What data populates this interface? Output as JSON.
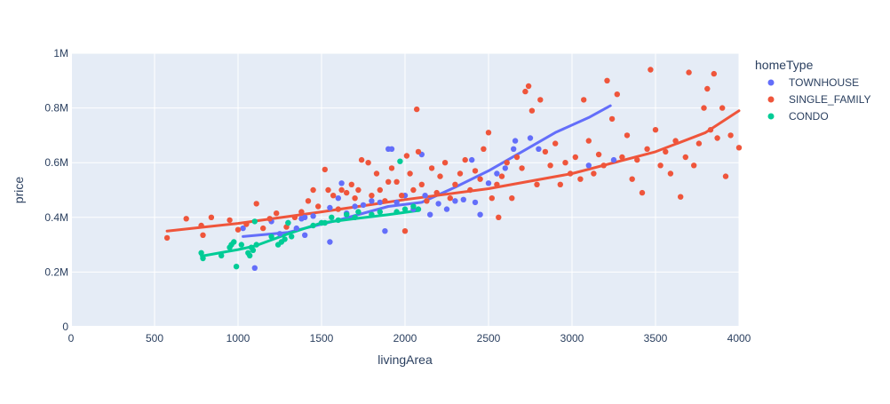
{
  "chart_data": {
    "type": "scatter",
    "title": "",
    "xlabel": "livingArea",
    "ylabel": "price",
    "xlim": [
      0,
      4000
    ],
    "ylim": [
      0,
      1000000
    ],
    "x_ticks": [
      0,
      500,
      1000,
      1500,
      2000,
      2500,
      3000,
      3500,
      4000
    ],
    "x_tick_labels": [
      "0",
      "500",
      "1000",
      "1500",
      "2000",
      "2500",
      "3000",
      "3500",
      "4000"
    ],
    "y_ticks": [
      0,
      200000,
      400000,
      600000,
      800000,
      1000000
    ],
    "y_tick_labels": [
      "0",
      "0.2M",
      "0.4M",
      "0.6M",
      "0.8M",
      "1M"
    ],
    "grid": true,
    "background": "#e5ecf6",
    "legend": {
      "title": "homeType",
      "position": "top-right"
    },
    "series": [
      {
        "name": "TOWNHOUSE",
        "color": "#636efa",
        "points": [
          [
            1030,
            360000
          ],
          [
            1100,
            215000
          ],
          [
            1200,
            385000
          ],
          [
            1250,
            340000
          ],
          [
            1300,
            380000
          ],
          [
            1350,
            360000
          ],
          [
            1380,
            395000
          ],
          [
            1400,
            335000
          ],
          [
            1400,
            400000
          ],
          [
            1450,
            405000
          ],
          [
            1500,
            380000
          ],
          [
            1550,
            310000
          ],
          [
            1550,
            435000
          ],
          [
            1600,
            470000
          ],
          [
            1620,
            525000
          ],
          [
            1650,
            415000
          ],
          [
            1700,
            440000
          ],
          [
            1750,
            445000
          ],
          [
            1800,
            460000
          ],
          [
            1850,
            455000
          ],
          [
            1880,
            350000
          ],
          [
            1900,
            650000
          ],
          [
            1920,
            650000
          ],
          [
            1950,
            455000
          ],
          [
            2000,
            480000
          ],
          [
            2050,
            430000
          ],
          [
            2100,
            630000
          ],
          [
            2120,
            480000
          ],
          [
            2150,
            410000
          ],
          [
            2200,
            450000
          ],
          [
            2250,
            430000
          ],
          [
            2300,
            460000
          ],
          [
            2350,
            465000
          ],
          [
            2400,
            610000
          ],
          [
            2420,
            455000
          ],
          [
            2450,
            410000
          ],
          [
            2500,
            525000
          ],
          [
            2550,
            560000
          ],
          [
            2600,
            580000
          ],
          [
            2650,
            650000
          ],
          [
            2660,
            680000
          ],
          [
            2750,
            690000
          ],
          [
            2800,
            650000
          ],
          [
            3100,
            590000
          ],
          [
            3250,
            610000
          ]
        ],
        "trend": [
          [
            1030,
            330000
          ],
          [
            1300,
            345000
          ],
          [
            1600,
            390000
          ],
          [
            1900,
            440000
          ],
          [
            2100,
            455000
          ],
          [
            2300,
            510000
          ],
          [
            2500,
            570000
          ],
          [
            2700,
            640000
          ],
          [
            2900,
            710000
          ],
          [
            3100,
            765000
          ],
          [
            3230,
            808000
          ]
        ]
      },
      {
        "name": "SINGLE_FAMILY",
        "color": "#ef553b",
        "points": [
          [
            575,
            325000
          ],
          [
            690,
            395000
          ],
          [
            780,
            370000
          ],
          [
            790,
            335000
          ],
          [
            840,
            400000
          ],
          [
            950,
            390000
          ],
          [
            1000,
            355000
          ],
          [
            1050,
            375000
          ],
          [
            1110,
            450000
          ],
          [
            1150,
            360000
          ],
          [
            1190,
            395000
          ],
          [
            1230,
            415000
          ],
          [
            1290,
            365000
          ],
          [
            1340,
            400000
          ],
          [
            1380,
            420000
          ],
          [
            1420,
            460000
          ],
          [
            1450,
            500000
          ],
          [
            1480,
            440000
          ],
          [
            1520,
            575000
          ],
          [
            1540,
            500000
          ],
          [
            1570,
            480000
          ],
          [
            1600,
            430000
          ],
          [
            1620,
            500000
          ],
          [
            1650,
            490000
          ],
          [
            1680,
            520000
          ],
          [
            1700,
            470000
          ],
          [
            1720,
            500000
          ],
          [
            1740,
            610000
          ],
          [
            1780,
            600000
          ],
          [
            1800,
            480000
          ],
          [
            1830,
            560000
          ],
          [
            1850,
            500000
          ],
          [
            1880,
            460000
          ],
          [
            1900,
            530000
          ],
          [
            1920,
            580000
          ],
          [
            1950,
            530000
          ],
          [
            1980,
            480000
          ],
          [
            2000,
            350000
          ],
          [
            2010,
            625000
          ],
          [
            2030,
            560000
          ],
          [
            2050,
            500000
          ],
          [
            2070,
            795000
          ],
          [
            2080,
            640000
          ],
          [
            2100,
            520000
          ],
          [
            2130,
            460000
          ],
          [
            2160,
            580000
          ],
          [
            2190,
            490000
          ],
          [
            2210,
            550000
          ],
          [
            2240,
            600000
          ],
          [
            2270,
            470000
          ],
          [
            2300,
            520000
          ],
          [
            2330,
            560000
          ],
          [
            2360,
            610000
          ],
          [
            2390,
            500000
          ],
          [
            2420,
            570000
          ],
          [
            2450,
            540000
          ],
          [
            2470,
            650000
          ],
          [
            2500,
            710000
          ],
          [
            2520,
            470000
          ],
          [
            2550,
            520000
          ],
          [
            2560,
            400000
          ],
          [
            2580,
            550000
          ],
          [
            2610,
            600000
          ],
          [
            2640,
            470000
          ],
          [
            2670,
            620000
          ],
          [
            2700,
            580000
          ],
          [
            2720,
            860000
          ],
          [
            2740,
            880000
          ],
          [
            2760,
            790000
          ],
          [
            2790,
            520000
          ],
          [
            2810,
            830000
          ],
          [
            2840,
            640000
          ],
          [
            2870,
            590000
          ],
          [
            2900,
            670000
          ],
          [
            2930,
            520000
          ],
          [
            2960,
            600000
          ],
          [
            2990,
            560000
          ],
          [
            3020,
            620000
          ],
          [
            3050,
            540000
          ],
          [
            3070,
            830000
          ],
          [
            3100,
            680000
          ],
          [
            3130,
            560000
          ],
          [
            3160,
            630000
          ],
          [
            3190,
            590000
          ],
          [
            3210,
            900000
          ],
          [
            3240,
            760000
          ],
          [
            3270,
            850000
          ],
          [
            3300,
            620000
          ],
          [
            3330,
            700000
          ],
          [
            3360,
            540000
          ],
          [
            3390,
            610000
          ],
          [
            3420,
            490000
          ],
          [
            3450,
            650000
          ],
          [
            3470,
            940000
          ],
          [
            3500,
            720000
          ],
          [
            3530,
            590000
          ],
          [
            3560,
            640000
          ],
          [
            3590,
            560000
          ],
          [
            3620,
            680000
          ],
          [
            3650,
            475000
          ],
          [
            3680,
            620000
          ],
          [
            3700,
            930000
          ],
          [
            3730,
            590000
          ],
          [
            3760,
            670000
          ],
          [
            3790,
            800000
          ],
          [
            3810,
            870000
          ],
          [
            3830,
            720000
          ],
          [
            3850,
            925000
          ],
          [
            3870,
            690000
          ],
          [
            3900,
            800000
          ],
          [
            3920,
            550000
          ],
          [
            3950,
            700000
          ],
          [
            4000,
            655000
          ]
        ],
        "trend": [
          [
            575,
            350000
          ],
          [
            1000,
            378000
          ],
          [
            1500,
            420000
          ],
          [
            2000,
            465000
          ],
          [
            2500,
            505000
          ],
          [
            3000,
            560000
          ],
          [
            3500,
            640000
          ],
          [
            3800,
            710000
          ],
          [
            4000,
            790000
          ]
        ]
      },
      {
        "name": "CONDO",
        "color": "#00cc96",
        "points": [
          [
            780,
            270000
          ],
          [
            790,
            250000
          ],
          [
            900,
            260000
          ],
          [
            950,
            290000
          ],
          [
            960,
            300000
          ],
          [
            975,
            310000
          ],
          [
            990,
            220000
          ],
          [
            1020,
            300000
          ],
          [
            1060,
            270000
          ],
          [
            1070,
            260000
          ],
          [
            1080,
            290000
          ],
          [
            1090,
            280000
          ],
          [
            1100,
            385000
          ],
          [
            1110,
            300000
          ],
          [
            1200,
            330000
          ],
          [
            1240,
            300000
          ],
          [
            1260,
            310000
          ],
          [
            1280,
            320000
          ],
          [
            1300,
            380000
          ],
          [
            1320,
            330000
          ],
          [
            1450,
            370000
          ],
          [
            1500,
            380000
          ],
          [
            1520,
            380000
          ],
          [
            1560,
            400000
          ],
          [
            1600,
            390000
          ],
          [
            1650,
            410000
          ],
          [
            1700,
            400000
          ],
          [
            1720,
            420000
          ],
          [
            1800,
            410000
          ],
          [
            1850,
            420000
          ],
          [
            1950,
            420000
          ],
          [
            1970,
            605000
          ],
          [
            2000,
            430000
          ],
          [
            2050,
            440000
          ],
          [
            2080,
            430000
          ]
        ],
        "trend": [
          [
            780,
            258000
          ],
          [
            1000,
            282000
          ],
          [
            1100,
            295000
          ],
          [
            1300,
            340000
          ],
          [
            1500,
            380000
          ],
          [
            1700,
            395000
          ],
          [
            1900,
            410000
          ],
          [
            2080,
            425000
          ]
        ]
      }
    ]
  }
}
